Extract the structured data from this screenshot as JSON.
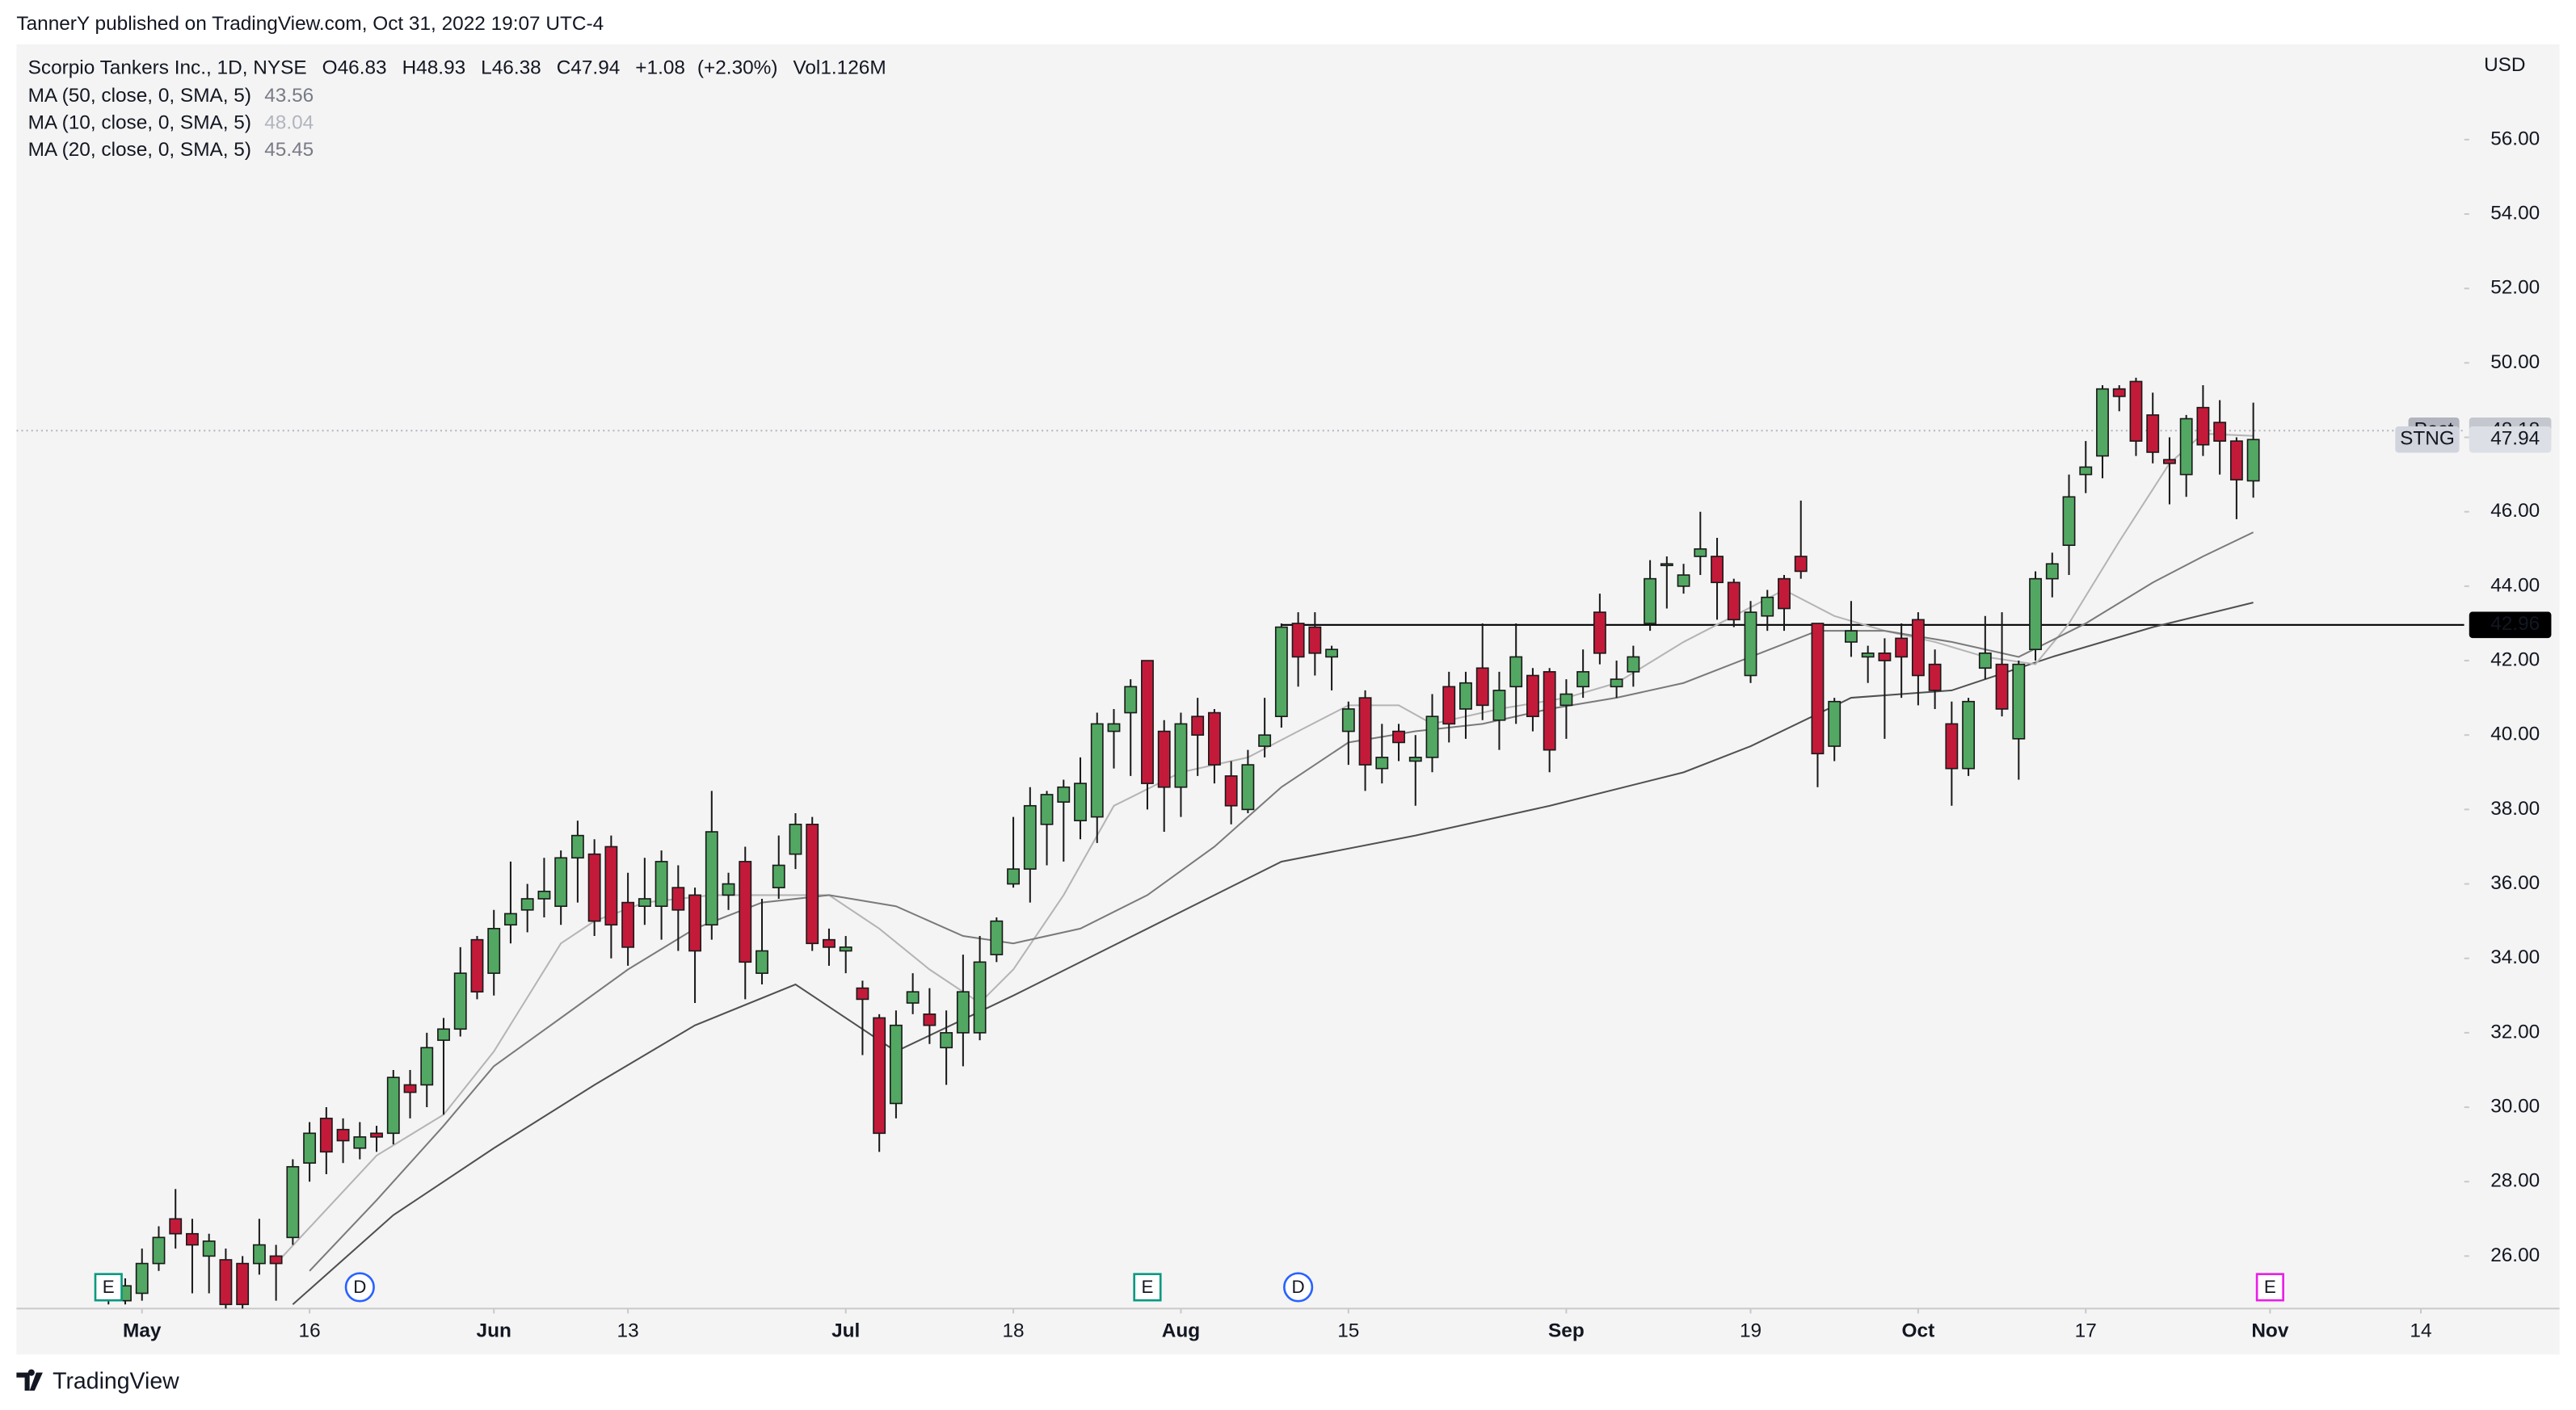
{
  "header": {
    "text": "TannerY published on TradingView.com, Oct 31, 2022 19:07 UTC-4"
  },
  "footer": {
    "brand": "TradingView"
  },
  "chart_data": {
    "type": "candlestick",
    "title": "Scorpio Tankers Inc., 1D, NYSE",
    "ohlc_labels": {
      "open": "O",
      "high": "H",
      "low": "L",
      "close": "C"
    },
    "change": "+1.08",
    "change_pct": "(+2.30%)",
    "volume_label": "Vol",
    "volume": "1.126M",
    "currency": "USD",
    "symbol": "STNG",
    "post_market": {
      "label": "Post",
      "value": 48.18
    },
    "up_color": "#52a862",
    "down_color": "#c41a3a",
    "x": [
      "2022-04-28",
      "2022-04-29",
      "2022-05-02",
      "2022-05-03",
      "2022-05-04",
      "2022-05-05",
      "2022-05-06",
      "2022-05-09",
      "2022-05-10",
      "2022-05-11",
      "2022-05-12",
      "2022-05-13",
      "2022-05-16",
      "2022-05-17",
      "2022-05-18",
      "2022-05-19",
      "2022-05-20",
      "2022-05-23",
      "2022-05-24",
      "2022-05-25",
      "2022-05-26",
      "2022-05-27",
      "2022-05-31",
      "2022-06-01",
      "2022-06-02",
      "2022-06-03",
      "2022-06-06",
      "2022-06-07",
      "2022-06-08",
      "2022-06-09",
      "2022-06-10",
      "2022-06-13",
      "2022-06-14",
      "2022-06-15",
      "2022-06-16",
      "2022-06-17",
      "2022-06-21",
      "2022-06-22",
      "2022-06-23",
      "2022-06-24",
      "2022-06-27",
      "2022-06-28",
      "2022-06-29",
      "2022-06-30",
      "2022-07-01",
      "2022-07-05",
      "2022-07-06",
      "2022-07-07",
      "2022-07-08",
      "2022-07-11",
      "2022-07-12",
      "2022-07-13",
      "2022-07-14",
      "2022-07-15",
      "2022-07-18",
      "2022-07-19",
      "2022-07-20",
      "2022-07-21",
      "2022-07-22",
      "2022-07-25",
      "2022-07-26",
      "2022-07-27",
      "2022-07-28",
      "2022-07-29",
      "2022-08-01",
      "2022-08-02",
      "2022-08-03",
      "2022-08-04",
      "2022-08-05",
      "2022-08-08",
      "2022-08-09",
      "2022-08-10",
      "2022-08-11",
      "2022-08-12",
      "2022-08-15",
      "2022-08-16",
      "2022-08-17",
      "2022-08-18",
      "2022-08-19",
      "2022-08-22",
      "2022-08-23",
      "2022-08-24",
      "2022-08-25",
      "2022-08-26",
      "2022-08-29",
      "2022-08-30",
      "2022-08-31",
      "2022-09-01",
      "2022-09-02",
      "2022-09-06",
      "2022-09-07",
      "2022-09-08",
      "2022-09-09",
      "2022-09-12",
      "2022-09-13",
      "2022-09-14",
      "2022-09-15",
      "2022-09-16",
      "2022-09-19",
      "2022-09-20",
      "2022-09-21",
      "2022-09-22",
      "2022-09-23",
      "2022-09-26",
      "2022-09-27",
      "2022-09-28",
      "2022-09-29",
      "2022-09-30",
      "2022-10-03",
      "2022-10-04",
      "2022-10-05",
      "2022-10-06",
      "2022-10-07",
      "2022-10-10",
      "2022-10-11",
      "2022-10-12",
      "2022-10-13",
      "2022-10-14",
      "2022-10-17",
      "2022-10-18",
      "2022-10-19",
      "2022-10-20",
      "2022-10-21",
      "2022-10-24",
      "2022-10-25",
      "2022-10-26",
      "2022-10-27",
      "2022-10-28",
      "2022-10-31"
    ],
    "open": [
      25.1,
      24.8,
      25.0,
      25.8,
      27.0,
      26.6,
      26.0,
      25.9,
      25.8,
      25.8,
      26.0,
      26.5,
      28.5,
      29.7,
      29.4,
      28.9,
      29.3,
      29.3,
      30.6,
      30.6,
      31.8,
      32.1,
      34.5,
      33.6,
      34.9,
      35.3,
      35.6,
      35.4,
      36.7,
      36.8,
      37.0,
      35.5,
      35.4,
      35.4,
      35.9,
      35.7,
      34.9,
      35.7,
      36.6,
      33.6,
      35.9,
      36.8,
      37.6,
      34.5,
      34.2,
      33.2,
      32.4,
      30.1,
      32.8,
      32.5,
      31.6,
      32.0,
      32.0,
      34.1,
      36.0,
      36.4,
      37.6,
      38.2,
      37.7,
      37.8,
      40.1,
      40.6,
      42.0,
      40.1,
      38.6,
      40.5,
      40.6,
      38.9,
      38.0,
      39.7,
      40.5,
      43.0,
      42.9,
      42.1,
      40.1,
      41.0,
      39.1,
      40.1,
      39.3,
      39.4,
      41.3,
      40.7,
      41.8,
      40.4,
      41.3,
      41.6,
      41.7,
      40.8,
      41.3,
      43.3,
      41.3,
      41.7,
      43.0,
      44.6,
      44.0,
      44.8,
      44.8,
      44.1,
      41.6,
      43.2,
      44.2,
      44.8,
      43.0,
      39.7,
      42.5,
      42.1,
      42.2,
      42.6,
      43.1,
      41.9,
      40.3,
      39.1,
      41.8,
      41.9,
      39.9,
      42.3,
      44.2,
      45.1,
      47.0,
      47.5,
      49.3,
      49.5,
      48.6,
      47.4,
      47.0,
      48.8,
      48.4,
      47.9,
      46.83
    ],
    "high": [
      25.3,
      25.4,
      26.2,
      26.8,
      27.8,
      27.0,
      26.6,
      26.2,
      26.0,
      27.0,
      26.3,
      28.6,
      29.6,
      30.0,
      29.7,
      29.6,
      29.5,
      31.0,
      31.0,
      32.0,
      32.4,
      34.3,
      34.6,
      35.3,
      36.6,
      36.0,
      36.7,
      36.9,
      37.7,
      37.2,
      37.3,
      36.3,
      36.7,
      36.9,
      36.5,
      35.9,
      38.5,
      36.3,
      37.0,
      35.6,
      37.3,
      37.9,
      37.8,
      34.8,
      34.6,
      33.4,
      32.5,
      32.6,
      33.6,
      33.2,
      32.6,
      34.1,
      34.6,
      35.1,
      37.8,
      38.6,
      38.5,
      38.8,
      39.4,
      40.6,
      40.7,
      41.5,
      42.0,
      40.4,
      40.6,
      41.0,
      40.7,
      39.3,
      39.6,
      41.0,
      43.0,
      43.3,
      43.3,
      42.4,
      40.9,
      41.2,
      40.3,
      40.3,
      40.0,
      41.1,
      41.7,
      41.7,
      43.0,
      41.7,
      43.0,
      41.8,
      41.8,
      41.5,
      42.3,
      43.8,
      42.0,
      42.4,
      44.7,
      44.8,
      44.6,
      46.0,
      45.3,
      44.2,
      43.6,
      43.9,
      44.3,
      46.3,
      43.0,
      41.0,
      43.6,
      42.4,
      42.6,
      43.0,
      43.3,
      42.3,
      40.9,
      41.0,
      43.2,
      43.3,
      42.0,
      44.4,
      44.9,
      47.0,
      47.9,
      49.4,
      49.4,
      49.6,
      49.2,
      48.0,
      48.6,
      49.4,
      49.0,
      48.0,
      48.93
    ],
    "low": [
      24.7,
      24.7,
      24.8,
      25.6,
      26.2,
      25.0,
      25.0,
      24.5,
      24.5,
      25.5,
      24.8,
      26.3,
      28.0,
      28.2,
      28.5,
      28.6,
      28.8,
      29.0,
      29.7,
      30.0,
      29.8,
      31.9,
      32.9,
      33.0,
      34.4,
      34.7,
      35.1,
      34.9,
      35.5,
      34.6,
      34.0,
      33.8,
      34.9,
      34.5,
      34.2,
      32.8,
      34.5,
      35.3,
      32.9,
      33.3,
      35.6,
      36.4,
      34.2,
      33.8,
      33.6,
      31.4,
      28.8,
      29.7,
      32.5,
      31.7,
      30.6,
      31.1,
      31.8,
      33.9,
      35.9,
      35.5,
      36.5,
      36.6,
      37.2,
      37.1,
      39.1,
      38.9,
      38.0,
      37.4,
      37.8,
      38.9,
      38.7,
      37.6,
      37.9,
      39.4,
      40.2,
      41.3,
      41.6,
      41.2,
      39.2,
      38.5,
      38.7,
      39.3,
      38.1,
      39.0,
      39.8,
      39.9,
      40.4,
      39.6,
      40.3,
      40.1,
      39.0,
      39.9,
      41.0,
      41.9,
      41.0,
      41.3,
      42.8,
      43.4,
      43.8,
      44.3,
      43.1,
      42.9,
      41.4,
      42.8,
      42.8,
      44.2,
      38.6,
      39.3,
      42.1,
      41.4,
      39.9,
      41.0,
      40.8,
      40.7,
      38.1,
      38.9,
      41.5,
      40.5,
      38.8,
      42.0,
      43.7,
      44.3,
      46.5,
      46.9,
      48.7,
      47.5,
      47.3,
      46.2,
      46.4,
      47.5,
      47.0,
      45.8,
      46.38
    ],
    "close": [
      24.9,
      25.2,
      25.8,
      26.5,
      26.6,
      26.3,
      26.4,
      24.7,
      24.7,
      26.3,
      25.8,
      28.4,
      29.3,
      28.8,
      29.1,
      29.2,
      29.2,
      30.8,
      30.4,
      31.6,
      32.1,
      33.6,
      33.1,
      34.8,
      35.2,
      35.6,
      35.8,
      36.7,
      37.3,
      35.0,
      34.9,
      34.3,
      35.6,
      36.6,
      35.3,
      34.2,
      37.4,
      36.0,
      33.9,
      34.2,
      36.5,
      37.6,
      34.4,
      34.3,
      34.3,
      32.9,
      29.3,
      32.2,
      33.1,
      32.2,
      32.0,
      33.1,
      33.9,
      35.0,
      36.4,
      38.1,
      38.4,
      38.6,
      38.7,
      40.3,
      40.3,
      41.3,
      38.7,
      38.6,
      40.3,
      40.0,
      39.2,
      38.1,
      39.2,
      40.0,
      42.9,
      42.1,
      42.2,
      42.3,
      40.7,
      39.2,
      39.4,
      39.8,
      39.4,
      40.5,
      40.3,
      41.4,
      40.8,
      41.2,
      42.1,
      40.5,
      39.6,
      41.1,
      41.7,
      42.2,
      41.5,
      42.1,
      44.2,
      44.6,
      44.3,
      45.0,
      44.1,
      43.1,
      43.3,
      43.7,
      43.4,
      44.4,
      39.5,
      40.9,
      42.8,
      42.2,
      42.0,
      42.1,
      41.6,
      41.2,
      39.1,
      40.9,
      42.2,
      40.7,
      41.9,
      44.2,
      44.6,
      46.4,
      47.2,
      49.3,
      49.1,
      47.9,
      47.6,
      47.3,
      48.5,
      47.8,
      47.9,
      46.86,
      47.94
    ],
    "series": [
      {
        "name": "MA (50, close, 0, SMA, 5)",
        "color": "#505050",
        "label_color": "#787b86",
        "x": [
          "2022-05-13",
          "2022-05-23",
          "2022-06-01",
          "2022-06-09",
          "2022-06-17",
          "2022-06-28",
          "2022-07-07",
          "2022-07-18",
          "2022-07-28",
          "2022-08-09",
          "2022-08-19",
          "2022-08-31",
          "2022-09-13",
          "2022-09-19",
          "2022-09-27",
          "2022-10-05",
          "2022-10-13",
          "2022-10-21",
          "2022-10-31"
        ],
        "values": [
          24.7,
          27.1,
          28.9,
          30.6,
          32.2,
          33.3,
          31.5,
          33.0,
          34.8,
          36.6,
          37.3,
          38.1,
          39.0,
          39.7,
          41.0,
          41.2,
          42.1,
          42.9,
          43.56
        ]
      },
      {
        "name": "MA (10, close, 0, SMA, 5)",
        "color": "#b4b4b4",
        "label_color": "#b2b5be",
        "x": [
          "2022-05-12",
          "2022-05-20",
          "2022-05-26",
          "2022-06-01",
          "2022-06-07",
          "2022-06-09",
          "2022-06-14",
          "2022-06-21",
          "2022-06-27",
          "2022-06-30",
          "2022-07-06",
          "2022-07-11",
          "2022-07-14",
          "2022-07-18",
          "2022-07-21",
          "2022-07-26",
          "2022-08-01",
          "2022-08-05",
          "2022-08-10",
          "2022-08-15",
          "2022-08-18",
          "2022-08-22",
          "2022-08-26",
          "2022-09-01",
          "2022-09-07",
          "2022-09-13",
          "2022-09-16",
          "2022-09-21",
          "2022-09-26",
          "2022-09-29",
          "2022-10-04",
          "2022-10-07",
          "2022-10-12",
          "2022-10-14",
          "2022-10-19",
          "2022-10-24",
          "2022-10-26",
          "2022-10-31"
        ],
        "values": [
          25.8,
          28.7,
          29.8,
          31.5,
          34.4,
          35.0,
          35.5,
          35.7,
          35.7,
          35.7,
          34.8,
          33.7,
          32.8,
          33.7,
          35.7,
          38.1,
          39.0,
          39.4,
          40.1,
          40.8,
          40.8,
          40.3,
          40.7,
          41.0,
          41.4,
          42.5,
          43.2,
          43.9,
          43.2,
          42.8,
          42.5,
          42.1,
          41.9,
          43.0,
          45.2,
          47.3,
          48.1,
          48.04
        ]
      },
      {
        "name": "MA (20, close, 0, SMA, 5)",
        "color": "#7a7a7a",
        "label_color": "#787b86",
        "x": [
          "2022-05-16",
          "2022-05-20",
          "2022-05-26",
          "2022-06-01",
          "2022-06-07",
          "2022-06-13",
          "2022-06-17",
          "2022-06-24",
          "2022-06-30",
          "2022-07-07",
          "2022-07-13",
          "2022-07-18",
          "2022-07-22",
          "2022-07-28",
          "2022-08-03",
          "2022-08-09",
          "2022-08-15",
          "2022-08-19",
          "2022-08-25",
          "2022-08-31",
          "2022-09-07",
          "2022-09-13",
          "2022-09-19",
          "2022-09-23",
          "2022-09-29",
          "2022-10-05",
          "2022-10-11",
          "2022-10-17",
          "2022-10-21",
          "2022-10-26",
          "2022-10-31"
        ],
        "values": [
          25.6,
          27.5,
          29.5,
          31.1,
          32.4,
          33.7,
          34.8,
          35.5,
          35.7,
          35.4,
          34.6,
          34.4,
          34.8,
          35.7,
          37.0,
          38.6,
          39.8,
          40.1,
          40.3,
          40.7,
          41.0,
          41.4,
          42.1,
          42.8,
          42.8,
          42.5,
          42.1,
          43.0,
          44.1,
          44.8,
          45.45
        ]
      }
    ],
    "hlines": [
      {
        "value": 42.96,
        "start": "2022-08-09",
        "color": "#000000"
      }
    ],
    "events": [
      {
        "date": "2022-04-28",
        "label": "E",
        "color": "#089981"
      },
      {
        "date": "2022-05-19",
        "label": "D",
        "color": "#2962ff"
      },
      {
        "date": "2022-07-28",
        "label": "E",
        "color": "#089981"
      },
      {
        "date": "2022-08-10",
        "label": "D",
        "color": "#2962ff"
      },
      {
        "date": "2022-11-01",
        "label": "E",
        "color": "#e91ee8"
      }
    ],
    "ylim": [
      24.59,
      58.56
    ],
    "yticks": [
      {
        "value": 26,
        "label": "26.00"
      },
      {
        "value": 28,
        "label": "28.00"
      },
      {
        "value": 30,
        "label": "30.00"
      },
      {
        "value": 32,
        "label": "32.00"
      },
      {
        "value": 34,
        "label": "34.00"
      },
      {
        "value": 36,
        "label": "36.00"
      },
      {
        "value": 38,
        "label": "38.00"
      },
      {
        "value": 40,
        "label": "40.00"
      },
      {
        "value": 42,
        "label": "42.00"
      },
      {
        "value": 44,
        "label": "44.00"
      },
      {
        "value": 46,
        "label": "46.00"
      },
      {
        "value": 48,
        "label": "48.00"
      },
      {
        "value": 50,
        "label": "50.00"
      },
      {
        "value": 52,
        "label": "52.00"
      },
      {
        "value": 54,
        "label": "54.00"
      },
      {
        "value": 56,
        "label": "56.00"
      }
    ],
    "xticks": [
      {
        "value": "2022-05-02",
        "label": "May"
      },
      {
        "value": "2022-05-16",
        "label": "16"
      },
      {
        "value": "2022-06-01",
        "label": "Jun"
      },
      {
        "value": "2022-06-13",
        "label": "13"
      },
      {
        "value": "2022-07-01",
        "label": "Jul"
      },
      {
        "value": "2022-07-18",
        "label": "18"
      },
      {
        "value": "2022-08-01",
        "label": "Aug"
      },
      {
        "value": "2022-08-15",
        "label": "15"
      },
      {
        "value": "2022-09-01",
        "label": "Sep"
      },
      {
        "value": "2022-09-19",
        "label": "19"
      },
      {
        "value": "2022-10-03",
        "label": "Oct"
      },
      {
        "value": "2022-10-17",
        "label": "17"
      },
      {
        "value": "2022-11-01",
        "label": "Nov"
      },
      {
        "value": "2022-11-14",
        "label": "14"
      }
    ]
  }
}
